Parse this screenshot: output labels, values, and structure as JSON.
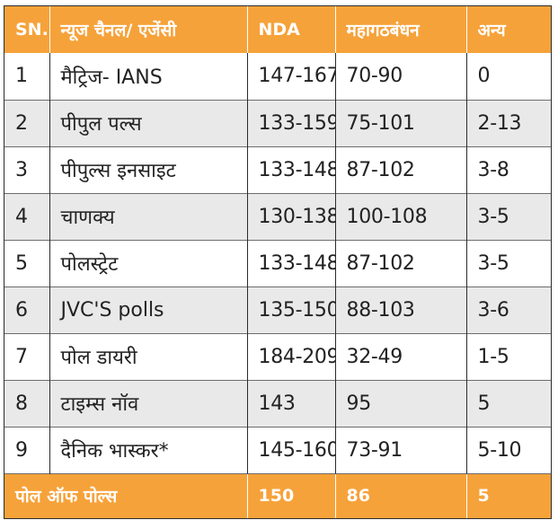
{
  "headers": [
    "SN.",
    "न्यूज चैनल/ एजेंसी",
    "NDA",
    "महागठबंधन",
    "अन्य"
  ],
  "rows": [
    {
      "sn": "1",
      "agency": "मैट्रिज- IANS",
      "nda": "147-167",
      "mgb": "70-90",
      "others": "0"
    },
    {
      "sn": "2",
      "agency": "पीपुल पल्स",
      "nda": "133-159",
      "mgb": "75-101",
      "others": "2-13"
    },
    {
      "sn": "3",
      "agency": "पीपुल्स इनसाइट",
      "nda": "133-148",
      "mgb": "87-102",
      "others": "3-8"
    },
    {
      "sn": "4",
      "agency": "चाणक्य",
      "nda": "130-138",
      "mgb": "100-108",
      "others": "3-5"
    },
    {
      "sn": "5",
      "agency": "पोलस्ट्रेट",
      "nda": "133-148",
      "mgb": "87-102",
      "others": "3-5"
    },
    {
      "sn": "6",
      "agency": "JVC'S polls",
      "nda": "135-150",
      "mgb": "88-103",
      "others": "3-6"
    },
    {
      "sn": "7",
      "agency": "पोल डायरी",
      "nda": "184-209",
      "mgb": "32-49",
      "others": "1-5"
    },
    {
      "sn": "8",
      "agency": "टाइम्स नॉव",
      "nda": "143",
      "mgb": "95",
      "others": "5"
    },
    {
      "sn": "9",
      "agency": "दैनिक भास्कर*",
      "nda": "145-160",
      "mgb": "73-91",
      "others": "5-10"
    }
  ],
  "footer": {
    "label": "पोल ऑफ पोल्स",
    "nda": "150",
    "mgb": "86",
    "others": "5"
  },
  "colors": {
    "header_bg": "#f6a23a",
    "even_row_bg": "#e9e9e9",
    "odd_row_bg": "#ffffff"
  }
}
